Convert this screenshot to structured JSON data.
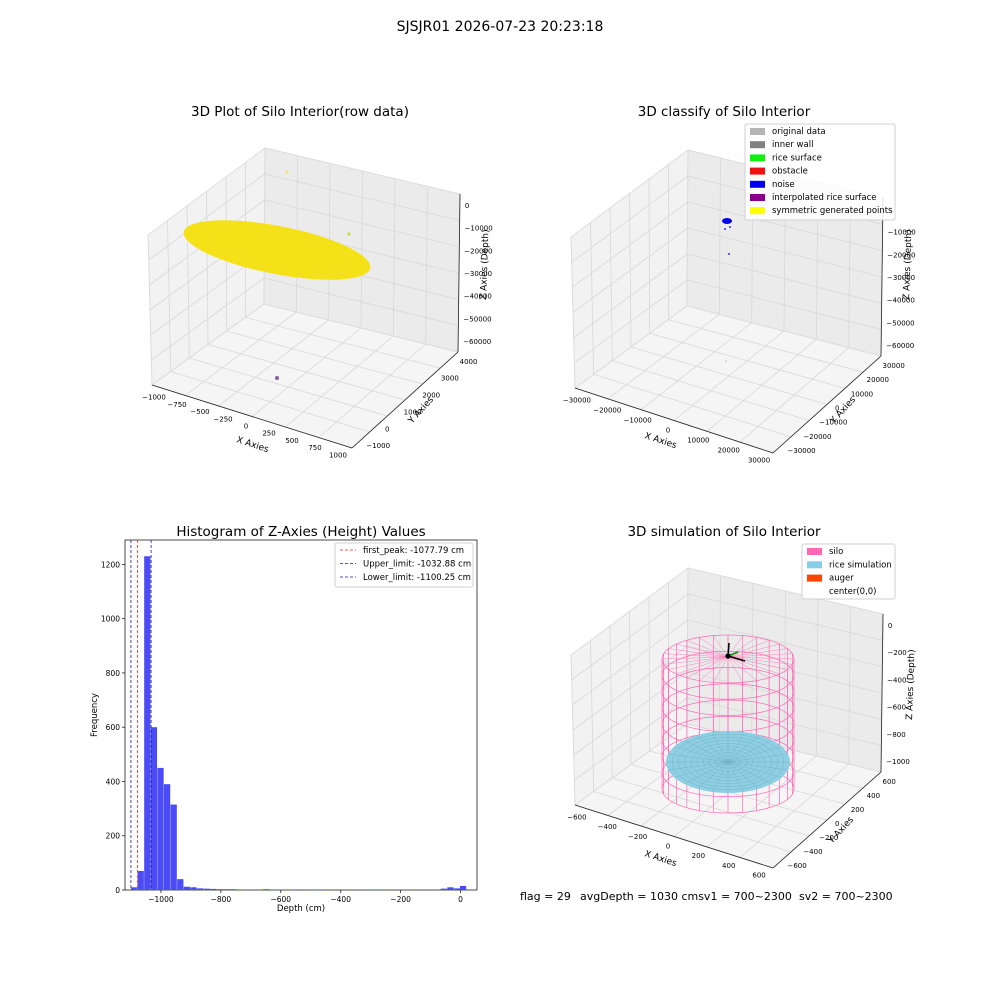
{
  "figure_title": "SJSJR01 2026-07-23 20:23:18",
  "status_line": {
    "flag": "flag = 29",
    "avg_depth": "avgDepth = 1030 cmsv1 = 700~2300",
    "sv2": "sv2 = 700~2300"
  },
  "chart_data": [
    {
      "type": "scatter",
      "projection": "3d",
      "title": "3D Plot of Silo Interior(row data)",
      "xlabel": "X Axies",
      "ylabel": "Y Axies",
      "zlabel": "Z Axies (Depth)",
      "xticks": [
        "−1000",
        "−750",
        "−500",
        "−250",
        "0",
        "250",
        "500",
        "750",
        "1000"
      ],
      "yticks": [
        "−1000",
        "0",
        "1000",
        "2000",
        "3000",
        "4000"
      ],
      "zticks": [
        "0",
        "−10000",
        "−20000",
        "−30000",
        "−40000",
        "−50000",
        "−60000"
      ],
      "xlim": [
        -1000,
        1000
      ],
      "ylim": [
        -1000,
        4000
      ],
      "zlim": [
        -60000,
        0
      ],
      "series": [
        {
          "color": "#f5e118",
          "shape": "ellipse-cloud",
          "center": [
            -250,
            1000,
            -10000
          ],
          "x_extent": [
            -1000,
            600
          ],
          "y_extent": [
            -1000,
            3000
          ]
        },
        {
          "color": "#e8e87a",
          "points": [
            [
              0,
              3500,
              0
            ],
            [
              -200,
              3800,
              -1000
            ]
          ]
        },
        {
          "color": "#8e5a9e",
          "points": [
            [
              600,
              1200,
              -62000
            ]
          ]
        }
      ]
    },
    {
      "type": "scatter",
      "projection": "3d",
      "title": "3D classify of Silo Interior",
      "xlabel": "X Axies",
      "ylabel": "Y Axies",
      "zlabel": "Z Axies (Depth)",
      "xticks": [
        "−30000",
        "−20000",
        "−10000",
        "0",
        "10000",
        "20000",
        "30000"
      ],
      "yticks": [
        "−30000",
        "−20000",
        "−10000",
        "0",
        "10000",
        "20000",
        "30000"
      ],
      "zticks": [
        "0",
        "−10000",
        "−20000",
        "−30000",
        "−40000",
        "−50000",
        "−60000"
      ],
      "legend_placement": "top-right",
      "legend": [
        {
          "label": "original data",
          "color": "#b4b4b4"
        },
        {
          "label": "inner wall",
          "color": "#808080"
        },
        {
          "label": "rice surface",
          "color": "#11ee11"
        },
        {
          "label": "obstacle",
          "color": "#ee1111"
        },
        {
          "label": "noise",
          "color": "#0000ee"
        },
        {
          "label": "interpolated rice surface",
          "color": "#880088"
        },
        {
          "label": "symmetric generated points",
          "color": "#ffff00"
        }
      ],
      "series": [
        {
          "color": "#0000ee",
          "points": [
            [
              0,
              0,
              -1000
            ],
            [
              500,
              500,
              -2000
            ],
            [
              800,
              200,
              -3000
            ],
            [
              0,
              0,
              -15000
            ]
          ]
        }
      ]
    },
    {
      "type": "bar",
      "title": "Histogram of Z-Axies (Height) Values",
      "xlabel": "Depth (cm)",
      "ylabel": "Frequency",
      "xticks": [
        "−1000",
        "−800",
        "−600",
        "−400",
        "−200",
        "0"
      ],
      "yticks": [
        "0",
        "200",
        "400",
        "600",
        "800",
        "1000",
        "1200"
      ],
      "xlim": [
        -1120,
        55
      ],
      "ylim": [
        0,
        1290
      ],
      "bar_color": "#4b4bf7",
      "bin_width": 22,
      "bins": [
        {
          "x": -1100,
          "count": 10
        },
        {
          "x": -1078,
          "count": 70
        },
        {
          "x": -1056,
          "count": 1230
        },
        {
          "x": -1034,
          "count": 600
        },
        {
          "x": -1012,
          "count": 450
        },
        {
          "x": -990,
          "count": 390
        },
        {
          "x": -968,
          "count": 315
        },
        {
          "x": -946,
          "count": 40
        },
        {
          "x": -924,
          "count": 12
        },
        {
          "x": -902,
          "count": 10
        },
        {
          "x": -880,
          "count": 6
        },
        {
          "x": -858,
          "count": 5
        },
        {
          "x": -836,
          "count": 4
        },
        {
          "x": -814,
          "count": 3
        },
        {
          "x": -792,
          "count": 3
        },
        {
          "x": -770,
          "count": 3
        },
        {
          "x": -748,
          "count": 2
        },
        {
          "x": -726,
          "count": 2
        },
        {
          "x": -660,
          "count": 3
        },
        {
          "x": -638,
          "count": 2
        },
        {
          "x": -616,
          "count": 2
        },
        {
          "x": -572,
          "count": 2
        },
        {
          "x": -506,
          "count": 2
        },
        {
          "x": -484,
          "count": 2
        },
        {
          "x": -440,
          "count": 2
        },
        {
          "x": -418,
          "count": 2
        },
        {
          "x": -396,
          "count": 2
        },
        {
          "x": -308,
          "count": 2
        },
        {
          "x": -286,
          "count": 2
        },
        {
          "x": -264,
          "count": 2
        },
        {
          "x": -198,
          "count": 2
        },
        {
          "x": -176,
          "count": 2
        },
        {
          "x": -66,
          "count": 5
        },
        {
          "x": -44,
          "count": 10
        },
        {
          "x": -22,
          "count": 6
        },
        {
          "x": -2,
          "count": 15
        }
      ],
      "vlines": [
        {
          "label": "first_peak: -1077.79 cm",
          "x": -1077.79,
          "color": "#ee2222"
        },
        {
          "label": "Upper_limit: -1032.88 cm",
          "x": -1032.88,
          "color": "#1a1a9e"
        },
        {
          "label": "Lower_limit: -1100.25 cm",
          "x": -1100.25,
          "color": "#1a1a9e"
        }
      ],
      "legend_placement": "top-right"
    },
    {
      "type": "scatter",
      "projection": "3d",
      "title": "3D simulation of Silo Interior",
      "xlabel": "X Axies",
      "ylabel": "Y Axies",
      "zlabel": "Z Axies (Depth)",
      "xticks": [
        "−600",
        "−400",
        "−200",
        "0",
        "200",
        "400",
        "600"
      ],
      "yticks": [
        "−600",
        "−400",
        "−200",
        "0",
        "200",
        "400",
        "600"
      ],
      "zticks": [
        "0",
        "−200",
        "−400",
        "−600",
        "−800",
        "−1000"
      ],
      "legend_placement": "top-right",
      "legend": [
        {
          "label": "silo",
          "color": "#ff69b4"
        },
        {
          "label": "rice simulation",
          "color": "#87ceeb"
        },
        {
          "label": "auger",
          "color": "#ff4500"
        },
        {
          "label": "center(0,0)",
          "color": "none"
        }
      ],
      "silo": {
        "radius": 600,
        "top": 0,
        "bottom": -1100,
        "color": "#ff69b4"
      },
      "rice": {
        "depth": -1030,
        "color": "#87ceeb"
      }
    }
  ]
}
